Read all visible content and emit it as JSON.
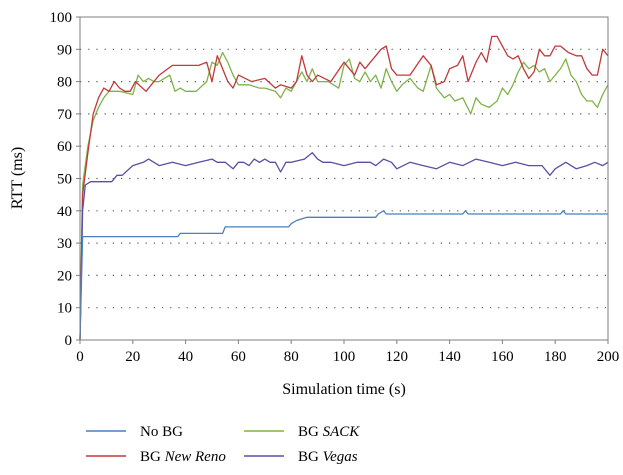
{
  "chart_data": {
    "type": "line",
    "title": "",
    "xlabel": "Simulation time (s)",
    "ylabel": "RTT (ms)",
    "xlim": [
      0,
      200
    ],
    "ylim": [
      0,
      100
    ],
    "x_ticks": [
      0,
      20,
      40,
      60,
      80,
      100,
      120,
      140,
      160,
      180,
      200
    ],
    "y_ticks": [
      0,
      10,
      20,
      30,
      40,
      50,
      60,
      70,
      80,
      90,
      100
    ],
    "grid": "horizontal dotted",
    "legend_position": "bottom",
    "series": [
      {
        "name": "No BG",
        "label_prefix": "No BG",
        "label_italic": "",
        "color": "#4a7fc1",
        "x": [
          0,
          1,
          2,
          10,
          20,
          30,
          37,
          38,
          45,
          54,
          55,
          60,
          70,
          79,
          80,
          82,
          86,
          90,
          100,
          112,
          113,
          115,
          116,
          130,
          145,
          146,
          147,
          160,
          182,
          183,
          184,
          200
        ],
        "y": [
          0,
          32,
          32,
          32,
          32,
          32,
          32,
          33,
          33,
          33,
          35,
          35,
          35,
          35,
          36,
          37,
          38,
          38,
          38,
          38,
          39,
          40,
          39,
          39,
          39,
          40,
          39,
          39,
          39,
          40,
          39,
          39
        ]
      },
      {
        "name": "BG New Reno",
        "label_prefix": "BG ",
        "label_italic": "New Reno",
        "color": "#c0393b",
        "x": [
          0,
          1,
          3,
          5,
          7,
          9,
          11,
          13,
          15,
          17,
          19,
          21,
          25,
          30,
          35,
          40,
          45,
          48,
          50,
          52,
          54,
          56,
          58,
          60,
          65,
          70,
          74,
          76,
          80,
          82,
          84,
          86,
          88,
          90,
          95,
          100,
          102,
          104,
          106,
          108,
          110,
          112,
          114,
          116,
          118,
          120,
          125,
          130,
          133,
          135,
          138,
          140,
          143,
          145,
          147,
          150,
          152,
          154,
          156,
          158,
          160,
          162,
          164,
          166,
          168,
          170,
          172,
          174,
          176,
          178,
          180,
          182,
          185,
          188,
          190,
          192,
          194,
          196,
          198,
          200
        ],
        "y": [
          0,
          45,
          58,
          70,
          75,
          78,
          77,
          80,
          78,
          77,
          77,
          80,
          77,
          82,
          85,
          85,
          85,
          86,
          80,
          88,
          84,
          80,
          78,
          82,
          80,
          81,
          78,
          79,
          78,
          80,
          88,
          82,
          80,
          82,
          80,
          86,
          84,
          82,
          86,
          84,
          86,
          88,
          90,
          91,
          84,
          82,
          82,
          88,
          85,
          79,
          80,
          84,
          85,
          88,
          80,
          86,
          89,
          86,
          94,
          94,
          91,
          88,
          87,
          88,
          84,
          81,
          83,
          90,
          88,
          88,
          91,
          91,
          89,
          88,
          88,
          84,
          82,
          82,
          90,
          88
        ]
      },
      {
        "name": "BG SACK",
        "label_prefix": "BG ",
        "label_italic": "SACK",
        "color": "#7fb347",
        "x": [
          0,
          1,
          3,
          5,
          7,
          9,
          11,
          15,
          20,
          22,
          24,
          26,
          28,
          30,
          34,
          36,
          38,
          40,
          44,
          48,
          50,
          52,
          54,
          56,
          58,
          60,
          64,
          68,
          70,
          74,
          76,
          78,
          80,
          82,
          84,
          86,
          88,
          90,
          94,
          98,
          100,
          102,
          104,
          106,
          108,
          110,
          112,
          114,
          116,
          118,
          120,
          122,
          125,
          128,
          130,
          133,
          135,
          138,
          140,
          142,
          145,
          148,
          150,
          152,
          155,
          158,
          160,
          162,
          164,
          166,
          168,
          170,
          172,
          174,
          176,
          178,
          180,
          182,
          184,
          186,
          188,
          190,
          192,
          194,
          196,
          198,
          200
        ],
        "y": [
          0,
          48,
          60,
          68,
          72,
          75,
          77,
          77,
          76,
          82,
          80,
          81,
          80,
          80,
          82,
          77,
          78,
          77,
          77,
          80,
          86,
          85,
          89,
          86,
          82,
          79,
          79,
          78,
          78,
          77,
          75,
          78,
          77,
          80,
          83,
          80,
          84,
          80,
          80,
          78,
          85,
          87,
          81,
          80,
          83,
          80,
          82,
          78,
          84,
          80,
          77,
          79,
          81,
          78,
          77,
          85,
          78,
          75,
          76,
          74,
          75,
          70,
          75,
          73,
          72,
          74,
          78,
          76,
          79,
          83,
          86,
          84,
          85,
          83,
          84,
          80,
          82,
          84,
          87,
          82,
          80,
          76,
          74,
          74,
          72,
          76,
          79
        ]
      },
      {
        "name": "BG Vegas",
        "label_prefix": "BG ",
        "label_italic": "Vegas",
        "color": "#5b4ea3",
        "x": [
          0,
          1,
          2,
          4,
          8,
          12,
          14,
          16,
          20,
          24,
          26,
          30,
          35,
          40,
          45,
          50,
          52,
          55,
          58,
          60,
          62,
          64,
          66,
          68,
          70,
          72,
          74,
          76,
          78,
          80,
          85,
          88,
          90,
          92,
          95,
          100,
          105,
          110,
          112,
          115,
          118,
          120,
          125,
          130,
          135,
          140,
          145,
          150,
          155,
          160,
          165,
          170,
          175,
          178,
          180,
          182,
          184,
          188,
          192,
          195,
          198,
          200
        ],
        "y": [
          0,
          40,
          48,
          49,
          49,
          49,
          51,
          51,
          54,
          55,
          56,
          54,
          55,
          54,
          55,
          56,
          55,
          55,
          53,
          55,
          55,
          54,
          56,
          55,
          56,
          55,
          55,
          52,
          55,
          55,
          56,
          58,
          56,
          55,
          55,
          54,
          55,
          55,
          54,
          56,
          55,
          53,
          55,
          54,
          53,
          55,
          54,
          56,
          55,
          54,
          55,
          54,
          54,
          51,
          53,
          54,
          55,
          53,
          54,
          55,
          54,
          55
        ]
      }
    ]
  }
}
